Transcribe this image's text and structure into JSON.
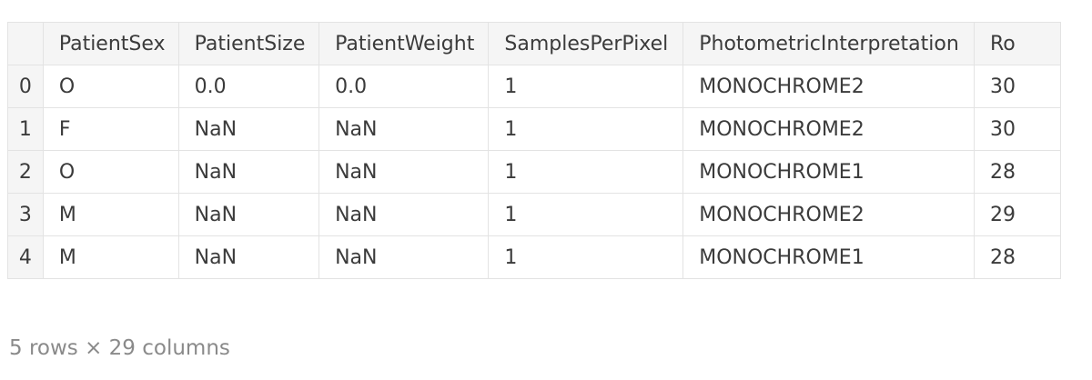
{
  "table": {
    "index_header": "",
    "columns": [
      "PatientSex",
      "PatientSize",
      "PatientWeight",
      "SamplesPerPixel",
      "PhotometricInterpretation",
      "Ro"
    ],
    "rows": [
      {
        "index": "0",
        "cells": [
          "O",
          "0.0",
          "0.0",
          "1",
          "MONOCHROME2",
          "30"
        ]
      },
      {
        "index": "1",
        "cells": [
          "F",
          "NaN",
          "NaN",
          "1",
          "MONOCHROME2",
          "30"
        ]
      },
      {
        "index": "2",
        "cells": [
          "O",
          "NaN",
          "NaN",
          "1",
          "MONOCHROME1",
          "28"
        ]
      },
      {
        "index": "3",
        "cells": [
          "M",
          "NaN",
          "NaN",
          "1",
          "MONOCHROME2",
          "29"
        ]
      },
      {
        "index": "4",
        "cells": [
          "M",
          "NaN",
          "NaN",
          "1",
          "MONOCHROME1",
          "28"
        ]
      }
    ]
  },
  "footer": {
    "summary": "5 rows × 29 columns"
  }
}
